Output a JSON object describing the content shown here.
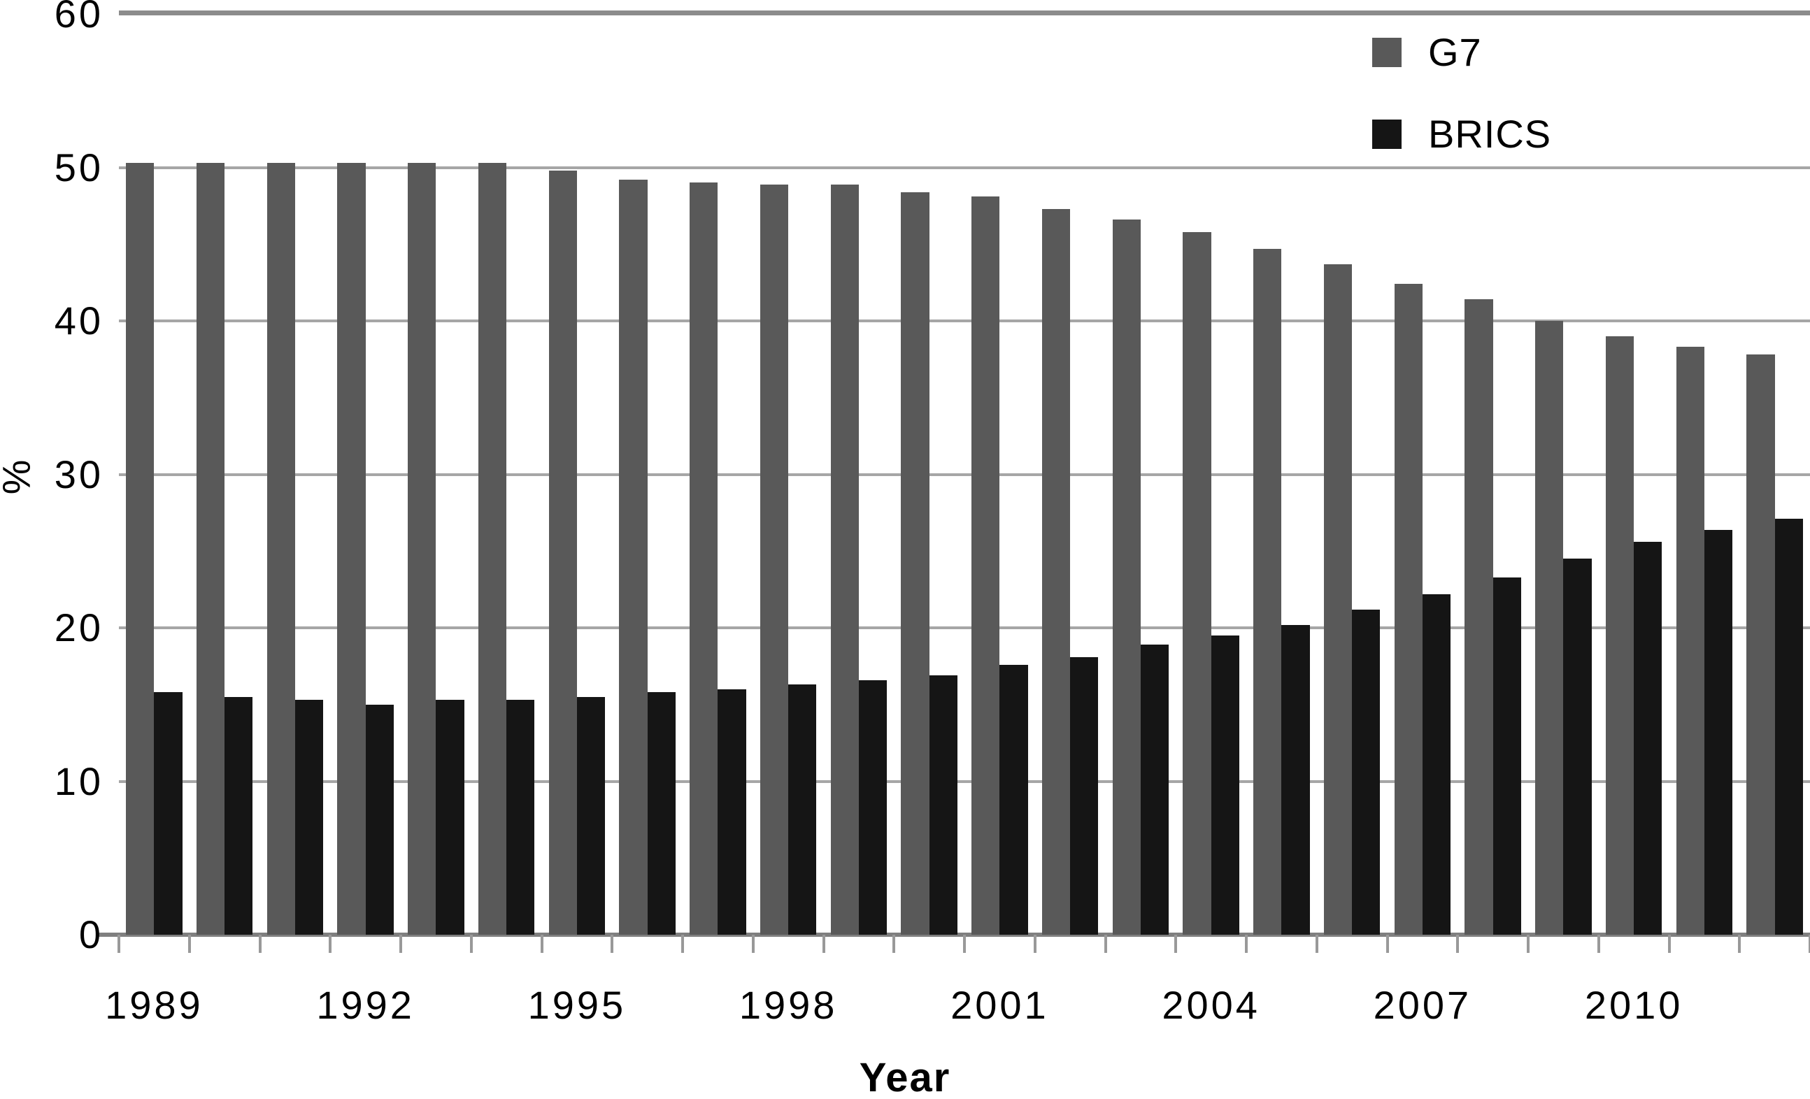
{
  "chart_data": {
    "type": "bar",
    "title": "",
    "xlabel": "Year",
    "ylabel": "%",
    "ylim": [
      0,
      60
    ],
    "yticks": [
      0,
      10,
      20,
      30,
      40,
      50,
      60
    ],
    "grid": true,
    "legend_position": "top-right",
    "categories": [
      1989,
      1990,
      1991,
      1992,
      1993,
      1994,
      1995,
      1996,
      1997,
      1998,
      1999,
      2000,
      2001,
      2002,
      2003,
      2004,
      2005,
      2006,
      2007,
      2008,
      2009,
      2010,
      2011,
      2012
    ],
    "xtick_labels": [
      "1989",
      "1992",
      "1995",
      "1998",
      "2001",
      "2004",
      "2007",
      "2010"
    ],
    "xtick_step": 3,
    "series": [
      {
        "name": "G7",
        "color": "#595959",
        "values": [
          50.3,
          50.3,
          50.3,
          50.3,
          50.3,
          50.3,
          49.8,
          49.2,
          49.0,
          48.9,
          48.9,
          48.4,
          48.1,
          47.3,
          46.6,
          45.8,
          44.7,
          43.7,
          42.4,
          41.4,
          40.0,
          39.0,
          38.3,
          37.8
        ]
      },
      {
        "name": "BRICS",
        "color": "#151515",
        "values": [
          15.8,
          15.5,
          15.3,
          15.0,
          15.3,
          15.3,
          15.5,
          15.8,
          16.0,
          16.3,
          16.6,
          16.9,
          17.6,
          18.1,
          18.9,
          19.5,
          20.2,
          21.2,
          22.2,
          23.3,
          24.5,
          25.6,
          26.4,
          27.1
        ]
      }
    ]
  },
  "legend": {
    "items": [
      {
        "label": "G7",
        "color": "#595959"
      },
      {
        "label": "BRICS",
        "color": "#151515"
      }
    ]
  },
  "colors": {
    "background": "#ffffff",
    "gridline": "#a6a6a6",
    "top_gridline": "#8c8c8c",
    "axis": "#7f7f7f",
    "tick": "#999999",
    "text": "#000000"
  }
}
